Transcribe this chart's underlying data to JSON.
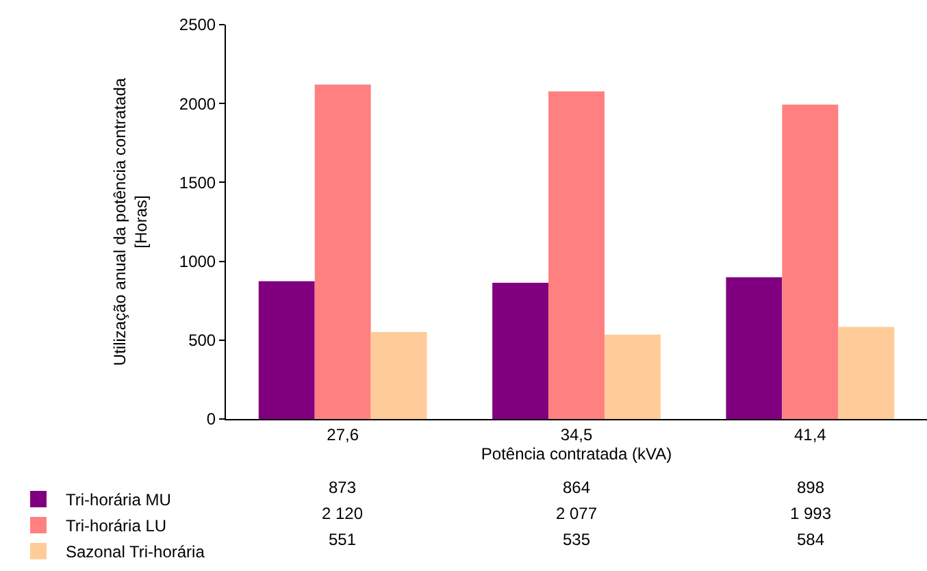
{
  "chart_data": {
    "type": "bar",
    "xlabel": "Potência contratada (kVA)",
    "ylabel": "Utilização anual da potência contratada\n[Horas]",
    "categories": [
      "27,6",
      "34,5",
      "41,4"
    ],
    "series": [
      {
        "name": "Tri-horária MU",
        "color": "#800080",
        "values": [
          873,
          864,
          898
        ],
        "value_labels": [
          "873",
          "864",
          "898"
        ]
      },
      {
        "name": "Tri-horária LU",
        "color": "#ff8080",
        "values": [
          2120,
          2077,
          1993
        ],
        "value_labels": [
          "2 120",
          "2 077",
          "1 993"
        ]
      },
      {
        "name": "Sazonal Tri-horária",
        "color": "#ffcc99",
        "values": [
          551,
          535,
          584
        ],
        "value_labels": [
          "551",
          "535",
          "584"
        ]
      }
    ],
    "ylim": [
      0,
      2500
    ],
    "yticks": [
      0,
      500,
      1000,
      1500,
      2000,
      2500
    ],
    "grid": false,
    "legend": "bottom"
  }
}
